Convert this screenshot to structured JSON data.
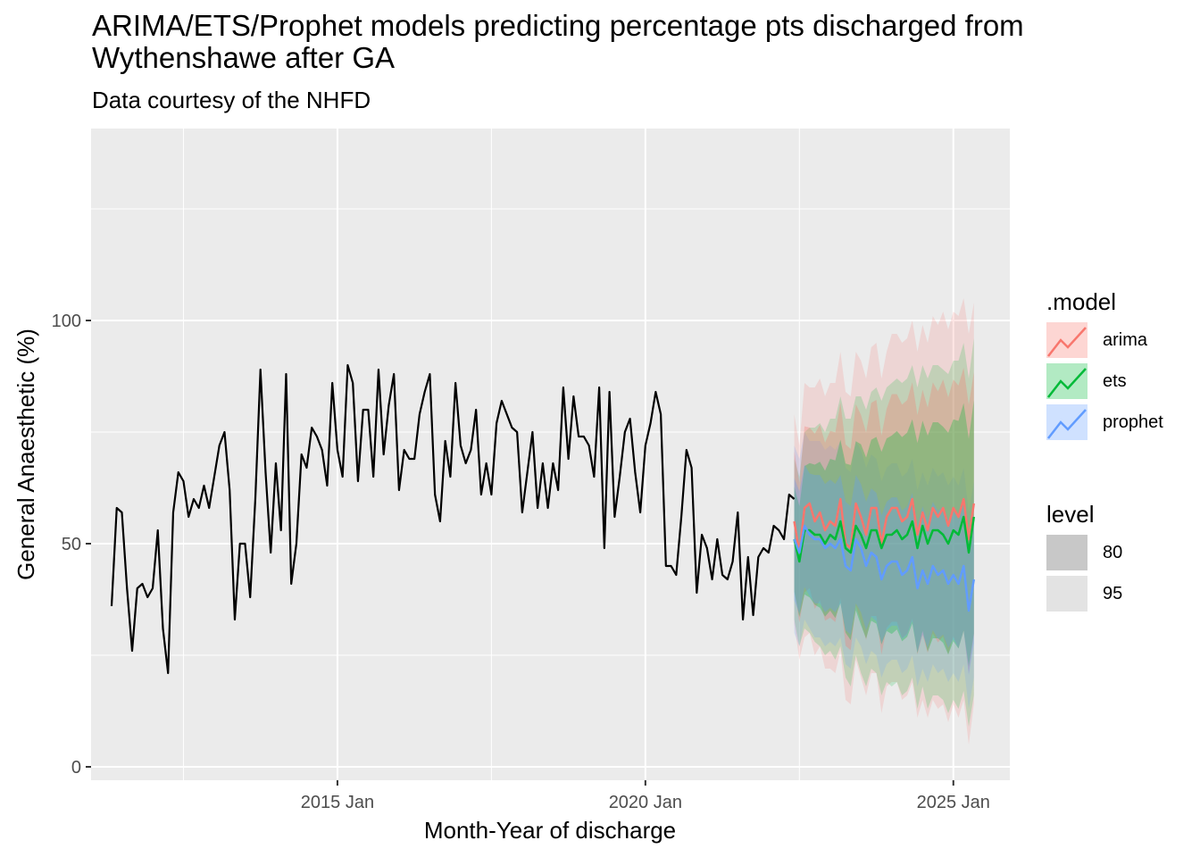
{
  "title": "ARIMA/ETS/Prophet models predicting percentage pts discharged from\n            Wythenshawe after GA",
  "subtitle": "Data courtesy of the NHFD",
  "colors": {
    "panel_bg": "#ebebeb",
    "grid": "#ffffff",
    "history": "#000000",
    "arima": "#F8766D",
    "ets": "#00BA38",
    "prophet": "#619CFF"
  },
  "legend_model": {
    "title": ".model",
    "items": [
      "arima",
      "ets",
      "prophet"
    ]
  },
  "legend_level": {
    "title": "level",
    "items": [
      "80",
      "95"
    ]
  },
  "chart_data": {
    "type": "line",
    "xlabel": "Month-Year of discharge",
    "ylabel": "General Anaesthetic (%)",
    "x_ticks": [
      "2015 Jan",
      "2020 Jan",
      "2025 Jan"
    ],
    "y_ticks": [
      0,
      50,
      100
    ],
    "xlim": [
      "2011-01",
      "2025-12"
    ],
    "ylim": [
      -3,
      143
    ],
    "history": {
      "start": "2011-05",
      "values": [
        36,
        58,
        57,
        40,
        26,
        40,
        41,
        38,
        40,
        53,
        31,
        21,
        57,
        66,
        64,
        56,
        60,
        58,
        63,
        58,
        65,
        72,
        75,
        62,
        33,
        50,
        50,
        38,
        60,
        89,
        66,
        48,
        68,
        53,
        88,
        41,
        50,
        70,
        67,
        76,
        74,
        71,
        63,
        86,
        71,
        65,
        90,
        86,
        64,
        80,
        80,
        65,
        89,
        70,
        81,
        88,
        62,
        71,
        69,
        69,
        79,
        84,
        88,
        61,
        55,
        73,
        65,
        86,
        72,
        68,
        71,
        80,
        61,
        68,
        61,
        77,
        82,
        79,
        76,
        75,
        57,
        66,
        75,
        58,
        68,
        58,
        68,
        62,
        85,
        69,
        83,
        74,
        74,
        72,
        65,
        85,
        49,
        84,
        56,
        65,
        75,
        78,
        66,
        57,
        72,
        77,
        84,
        79,
        45,
        45,
        43,
        56,
        71,
        67,
        39,
        52,
        49,
        42,
        51,
        43,
        42,
        46,
        57,
        33,
        47,
        34,
        47,
        49,
        48,
        54,
        53,
        51,
        61,
        60
      ]
    },
    "forecast_start": "2022-06",
    "forecast": [
      {
        "model": "arima",
        "mean": [
          55,
          48,
          58,
          59,
          55,
          57,
          53,
          55,
          54,
          60,
          50,
          49,
          59,
          56,
          52,
          58,
          58,
          50,
          56,
          58,
          58,
          55,
          56,
          60,
          52,
          57,
          53,
          58,
          56,
          58,
          54,
          58,
          56,
          60,
          51,
          59
        ],
        "lo95": [
          32,
          24,
          29,
          30,
          25,
          27,
          22,
          22,
          21,
          26,
          15,
          14,
          24,
          20,
          16,
          21,
          21,
          12,
          18,
          19,
          19,
          15,
          16,
          19,
          11,
          15,
          11,
          15,
          13,
          14,
          10,
          14,
          11,
          15,
          5,
          14
        ],
        "hi95": [
          79,
          72,
          86,
          85,
          85,
          87,
          83,
          86,
          86,
          93,
          84,
          83,
          93,
          91,
          87,
          94,
          95,
          87,
          93,
          97,
          97,
          95,
          96,
          100,
          93,
          99,
          95,
          101,
          99,
          102,
          98,
          102,
          101,
          105,
          97,
          104
        ]
      },
      {
        "model": "ets",
        "mean": [
          51,
          46,
          53,
          53,
          52,
          52,
          50,
          52,
          51,
          55,
          49,
          48,
          54,
          52,
          49,
          53,
          53,
          49,
          52,
          52,
          53,
          51,
          52,
          55,
          49,
          54,
          50,
          53,
          53,
          52,
          50,
          53,
          52,
          56,
          48,
          56
        ],
        "lo95": [
          33,
          27,
          31,
          30,
          28,
          27,
          25,
          26,
          24,
          27,
          20,
          18,
          25,
          21,
          18,
          22,
          21,
          16,
          19,
          18,
          19,
          16,
          17,
          20,
          13,
          18,
          13,
          16,
          16,
          15,
          12,
          15,
          13,
          17,
          9,
          16
        ],
        "hi95": [
          69,
          65,
          75,
          76,
          76,
          77,
          75,
          78,
          78,
          83,
          78,
          78,
          83,
          83,
          80,
          84,
          85,
          82,
          85,
          86,
          87,
          86,
          87,
          90,
          85,
          90,
          87,
          90,
          90,
          89,
          88,
          91,
          91,
          95,
          87,
          96
        ]
      },
      {
        "model": "prophet",
        "mean": [
          51,
          48,
          54,
          52,
          51,
          51,
          49,
          50,
          49,
          51,
          45,
          44,
          51,
          49,
          45,
          48,
          47,
          42,
          45,
          46,
          46,
          43,
          44,
          47,
          40,
          44,
          41,
          45,
          43,
          44,
          41,
          43,
          41,
          45,
          35,
          42
        ],
        "lo95": [
          30,
          27,
          33,
          31,
          29,
          29,
          27,
          28,
          27,
          29,
          23,
          22,
          29,
          27,
          23,
          26,
          25,
          20,
          23,
          24,
          24,
          21,
          22,
          25,
          18,
          22,
          19,
          23,
          21,
          22,
          19,
          21,
          19,
          23,
          13,
          20
        ],
        "hi95": [
          72,
          69,
          75,
          73,
          73,
          73,
          71,
          72,
          71,
          73,
          67,
          66,
          73,
          71,
          67,
          70,
          69,
          64,
          67,
          68,
          68,
          65,
          66,
          69,
          62,
          66,
          63,
          67,
          65,
          66,
          63,
          65,
          63,
          67,
          57,
          64
        ]
      }
    ]
  }
}
